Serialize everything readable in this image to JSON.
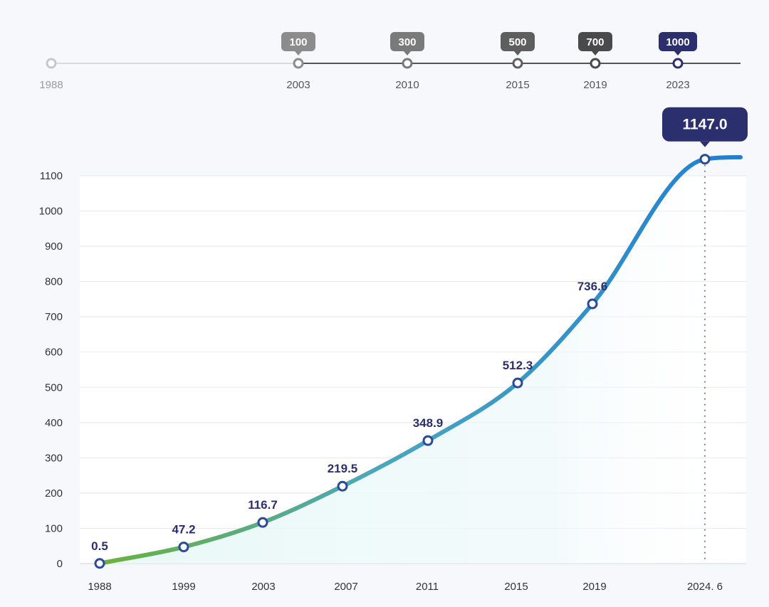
{
  "milestones": {
    "start_year": "1988",
    "items": [
      {
        "badge": "100",
        "year": "2003",
        "color": "#8c8c8c"
      },
      {
        "badge": "300",
        "year": "2010",
        "color": "#7a7a7a"
      },
      {
        "badge": "500",
        "year": "2015",
        "color": "#5e5e5e"
      },
      {
        "badge": "700",
        "year": "2019",
        "color": "#4a4a4a"
      },
      {
        "badge": "1000",
        "year": "2023",
        "color": "#2b2f6e"
      }
    ]
  },
  "chart_data": {
    "type": "area",
    "title": "",
    "xlabel": "",
    "ylabel": "",
    "categories": [
      "1988",
      "1999",
      "2003",
      "2007",
      "2011",
      "2015",
      "2019",
      "2024. 6"
    ],
    "values": [
      0.5,
      47.2,
      116.7,
      219.5,
      348.9,
      512.3,
      736.6,
      1147.0
    ],
    "value_labels": [
      "0.5",
      "47.2",
      "116.7",
      "219.5",
      "348.9",
      "512.3",
      "736.6",
      "1147.0"
    ],
    "highlight_index": 7,
    "ylim": [
      0,
      1100
    ],
    "yticks": [
      "0",
      "100",
      "200",
      "300",
      "400",
      "500",
      "600",
      "700",
      "800",
      "900",
      "1000",
      "1100"
    ],
    "grid": true,
    "legend": "none",
    "colors": {
      "line_start": "#6ab23c",
      "line_mid": "#4aa6c0",
      "line_end": "#1f7fd1",
      "marker_stroke": "#2b4a9c",
      "highlight_bg": "#2b2f6e"
    }
  }
}
